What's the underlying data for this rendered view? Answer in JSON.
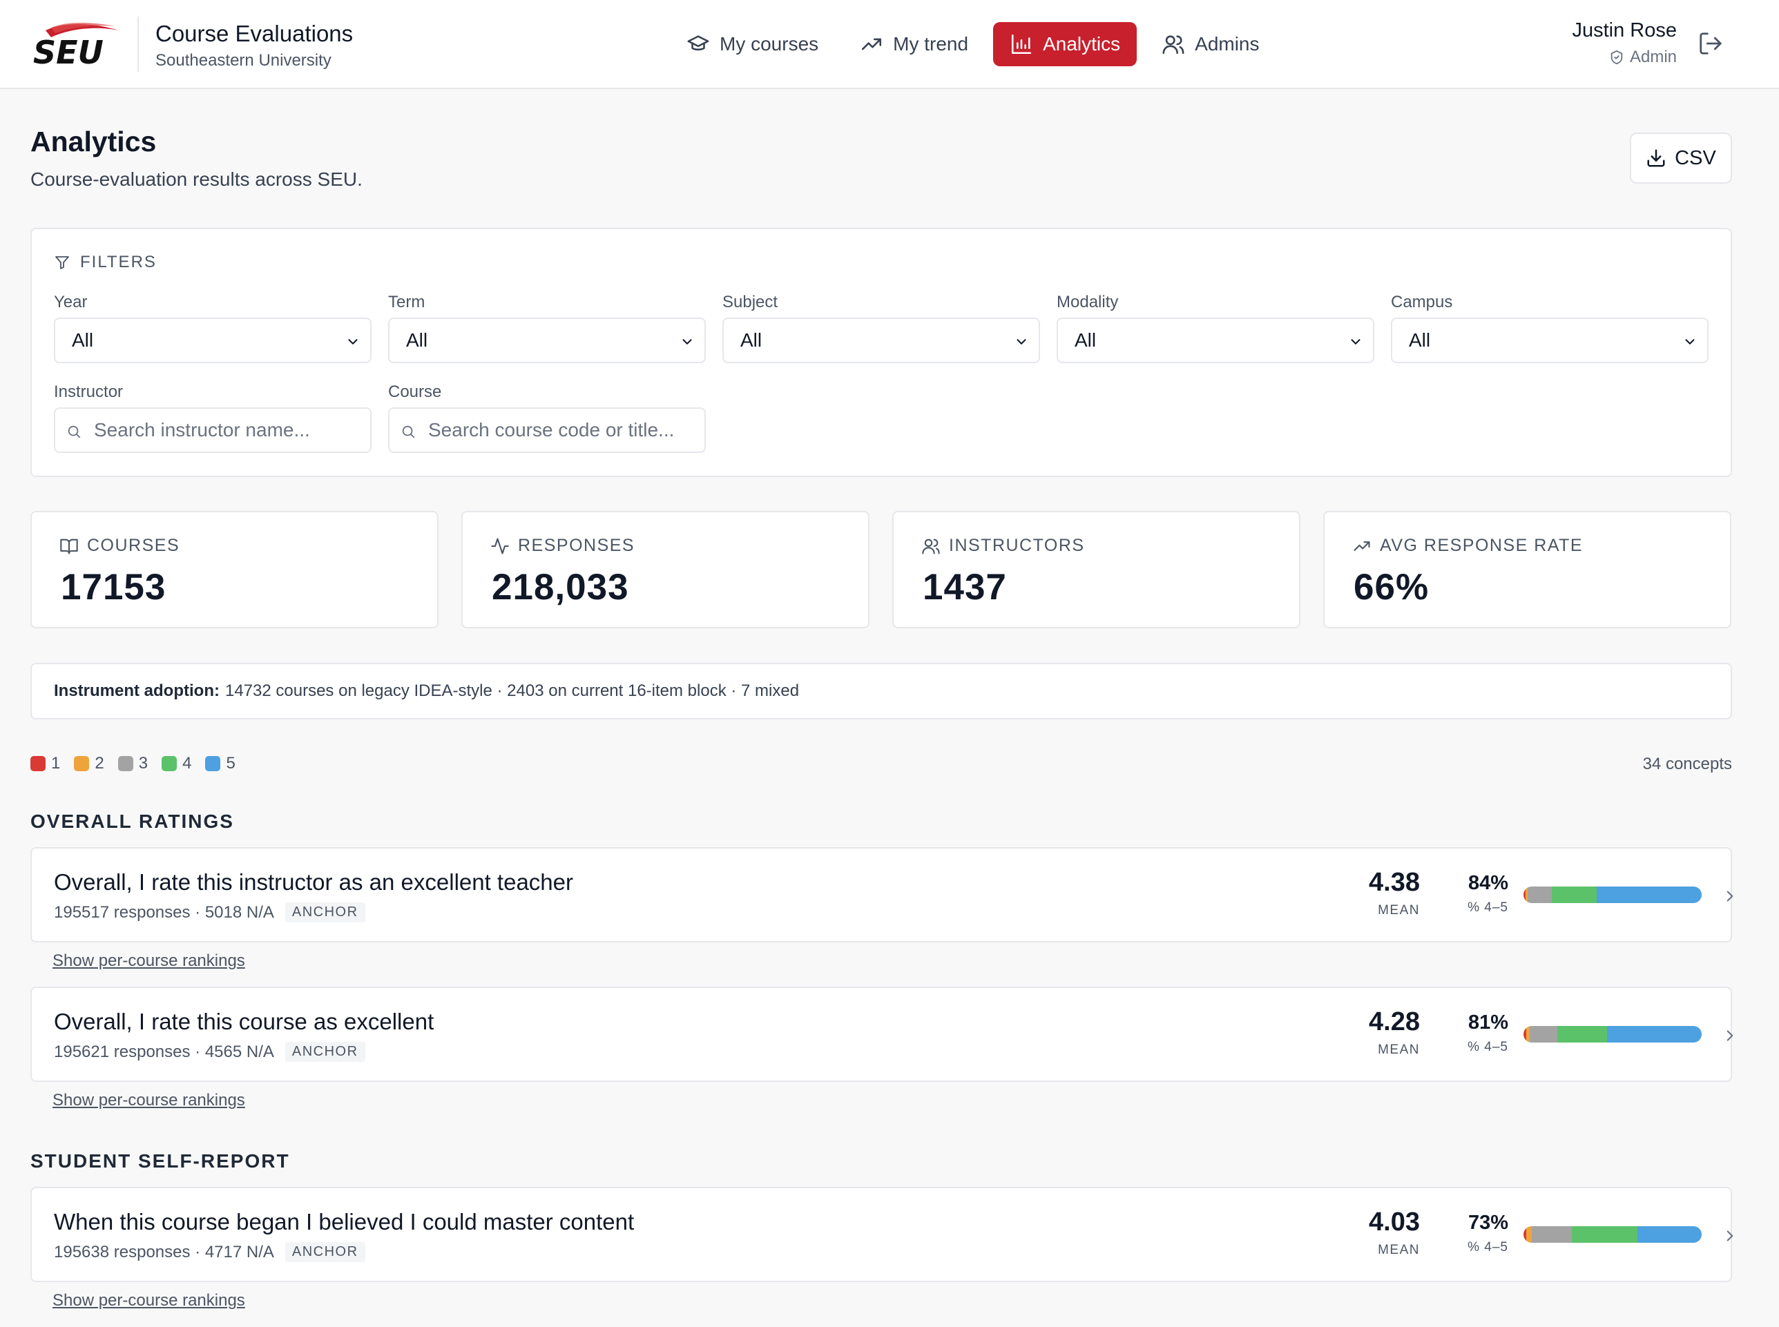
{
  "brand": {
    "logo_text": "SEU",
    "app_title": "Course Evaluations",
    "university": "Southeastern University",
    "logo_color": "#c8202d"
  },
  "nav": [
    {
      "label": "My courses",
      "icon": "graduation-cap-icon",
      "active": false
    },
    {
      "label": "My trend",
      "icon": "trending-up-icon",
      "active": false
    },
    {
      "label": "Analytics",
      "icon": "bar-chart-icon",
      "active": true
    },
    {
      "label": "Admins",
      "icon": "users-icon",
      "active": false
    }
  ],
  "user": {
    "name": "Justin Rose",
    "role": "Admin"
  },
  "page": {
    "title": "Analytics",
    "subtitle": "Course-evaluation results across SEU.",
    "csv_label": "CSV"
  },
  "filters": {
    "heading": "FILTERS",
    "year": {
      "label": "Year",
      "value": "All"
    },
    "term": {
      "label": "Term",
      "value": "All"
    },
    "subject": {
      "label": "Subject",
      "value": "All"
    },
    "modality": {
      "label": "Modality",
      "value": "All"
    },
    "campus": {
      "label": "Campus",
      "value": "All"
    },
    "instructor": {
      "label": "Instructor",
      "placeholder": "Search instructor name..."
    },
    "course": {
      "label": "Course",
      "placeholder": "Search course code or title..."
    }
  },
  "stats": [
    {
      "label": "COURSES",
      "value": "17153",
      "icon": "book-open-icon"
    },
    {
      "label": "RESPONSES",
      "value": "218,033",
      "icon": "activity-icon"
    },
    {
      "label": "INSTRUCTORS",
      "value": "1437",
      "icon": "users-icon"
    },
    {
      "label": "AVG RESPONSE RATE",
      "value": "66%",
      "icon": "trending-up-icon"
    }
  ],
  "adoption": {
    "label": "Instrument adoption:",
    "text": "14732 courses on legacy IDEA-style · 2403 on current 16-item block · 7 mixed"
  },
  "legend": [
    {
      "label": "1",
      "color": "#d93a34"
    },
    {
      "label": "2",
      "color": "#efa43b"
    },
    {
      "label": "3",
      "color": "#a3a3a3"
    },
    {
      "label": "4",
      "color": "#5bc26a"
    },
    {
      "label": "5",
      "color": "#4da1e0"
    }
  ],
  "concepts_count": "34 concepts",
  "sections": [
    {
      "heading": "OVERALL RATINGS",
      "items": [
        {
          "title": "Overall, I rate this instructor as an excellent teacher",
          "meta": "195517 responses · 5018 N/A",
          "badge": "ANCHOR",
          "mean": "4.38",
          "mean_label": "MEAN",
          "pct": "84%",
          "pct_label": "% 4–5",
          "distribution_pct": [
            1,
            1.5,
            13.5,
            25,
            59
          ],
          "link": "Show per-course rankings"
        },
        {
          "title": "Overall, I rate this course as excellent",
          "meta": "195621 responses · 4565 N/A",
          "badge": "ANCHOR",
          "mean": "4.28",
          "mean_label": "MEAN",
          "pct": "81%",
          "pct_label": "% 4–5",
          "distribution_pct": [
            1.5,
            2,
            15.5,
            28,
            53
          ],
          "link": "Show per-course rankings"
        }
      ]
    },
    {
      "heading": "STUDENT SELF-REPORT",
      "items": [
        {
          "title": "When this course began I believed I could master content",
          "meta": "195638 responses · 4717 N/A",
          "badge": "ANCHOR",
          "mean": "4.03",
          "mean_label": "MEAN",
          "pct": "73%",
          "pct_label": "% 4–5",
          "distribution_pct": [
            1.5,
            3,
            22.5,
            37,
            36
          ],
          "link": "Show per-course rankings"
        }
      ]
    }
  ]
}
